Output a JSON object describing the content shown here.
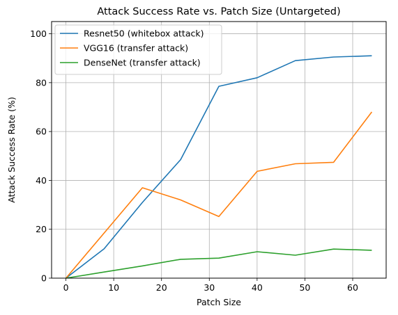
{
  "chart_data": {
    "type": "line",
    "title": "Attack Success Rate vs. Patch Size (Untargeted)",
    "xlabel": "Patch Size",
    "ylabel": "Attack Success Rate (%)",
    "xlim": [
      -3,
      67
    ],
    "ylim": [
      0,
      105
    ],
    "xticks": [
      0,
      10,
      20,
      30,
      40,
      50,
      60
    ],
    "yticks": [
      0,
      20,
      40,
      60,
      80,
      100
    ],
    "grid": true,
    "legend_position": "top-left",
    "x": [
      0,
      8,
      16,
      24,
      32,
      40,
      48,
      56,
      64
    ],
    "series": [
      {
        "name": "Resnet50 (whitebox attack)",
        "color": "#1f77b4",
        "values": [
          0,
          12,
          31,
          48.5,
          78.5,
          82,
          89,
          90.5,
          91
        ]
      },
      {
        "name": "VGG16 (transfer attack)",
        "color": "#ff7f0e",
        "values": [
          0,
          null,
          37,
          32,
          25.2,
          43.7,
          46.8,
          47.4,
          68
        ]
      },
      {
        "name": "DenseNet (transfer attack)",
        "color": "#2ca02c",
        "values": [
          0,
          2.5,
          5,
          7.7,
          8.2,
          10.8,
          9.4,
          11.9,
          11.4
        ]
      }
    ]
  }
}
